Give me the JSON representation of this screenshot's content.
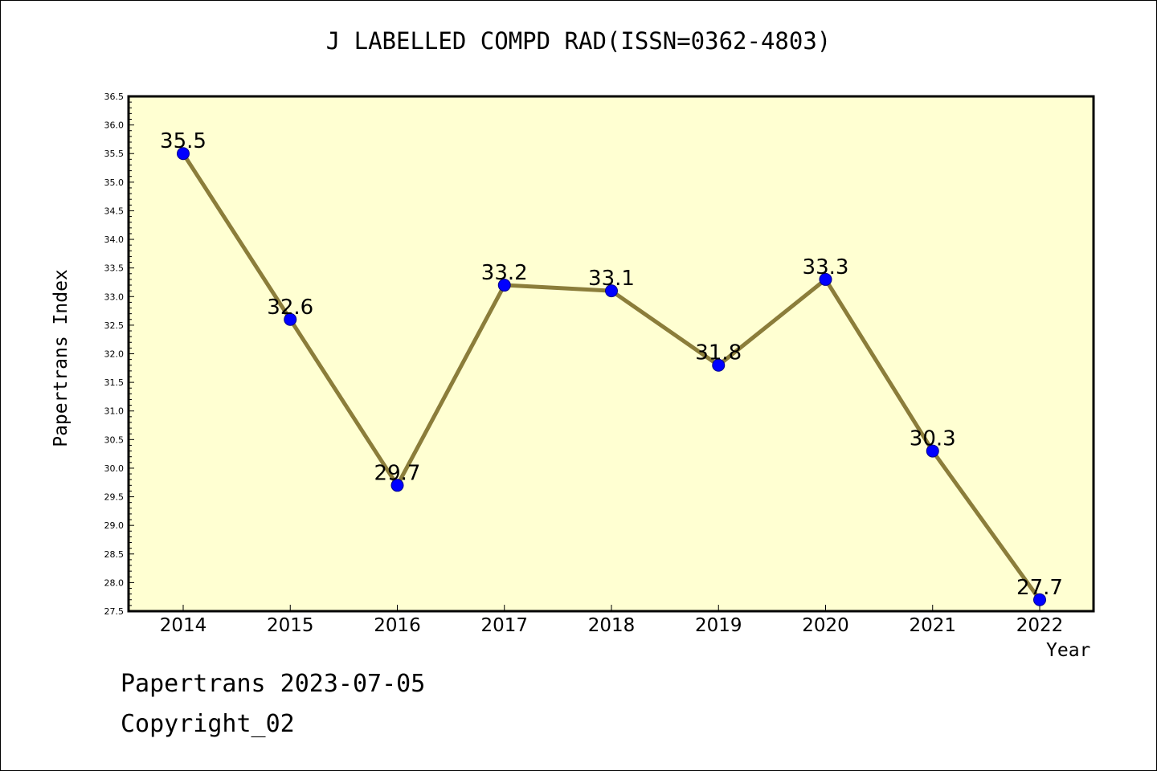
{
  "chart_data": {
    "type": "line",
    "title": "J LABELLED COMPD RAD(ISSN=0362-4803)",
    "xlabel": "Year",
    "ylabel": "Papertrans Index",
    "categories": [
      "2014",
      "2015",
      "2016",
      "2017",
      "2018",
      "2019",
      "2020",
      "2021",
      "2022"
    ],
    "series": [
      {
        "values": [
          35.5,
          32.6,
          29.7,
          33.2,
          33.1,
          31.8,
          33.3,
          30.3,
          27.7
        ],
        "data_labels": [
          "35.5",
          "32.6",
          "29.7",
          "33.2",
          "33.1",
          "31.8",
          "33.3",
          "30.3",
          "27.7"
        ]
      }
    ],
    "ylim": [
      27.5,
      36.5
    ],
    "y_ticks": [
      "27.5",
      "28.0",
      "28.5",
      "29.0",
      "29.5",
      "30.0",
      "30.5",
      "31.0",
      "31.5",
      "32.0",
      "32.5",
      "33.0",
      "33.5",
      "34.0",
      "34.5",
      "35.0",
      "35.5",
      "36.0",
      "36.5"
    ],
    "grid": false,
    "colors": {
      "plot_background": "#ffffd2",
      "line": "#8b7d3a",
      "marker": "#0000ff",
      "marker_edge": "#00008b"
    }
  },
  "footer": {
    "date_line": "Papertrans 2023-07-05",
    "copyright_line": "Copyright_02"
  }
}
